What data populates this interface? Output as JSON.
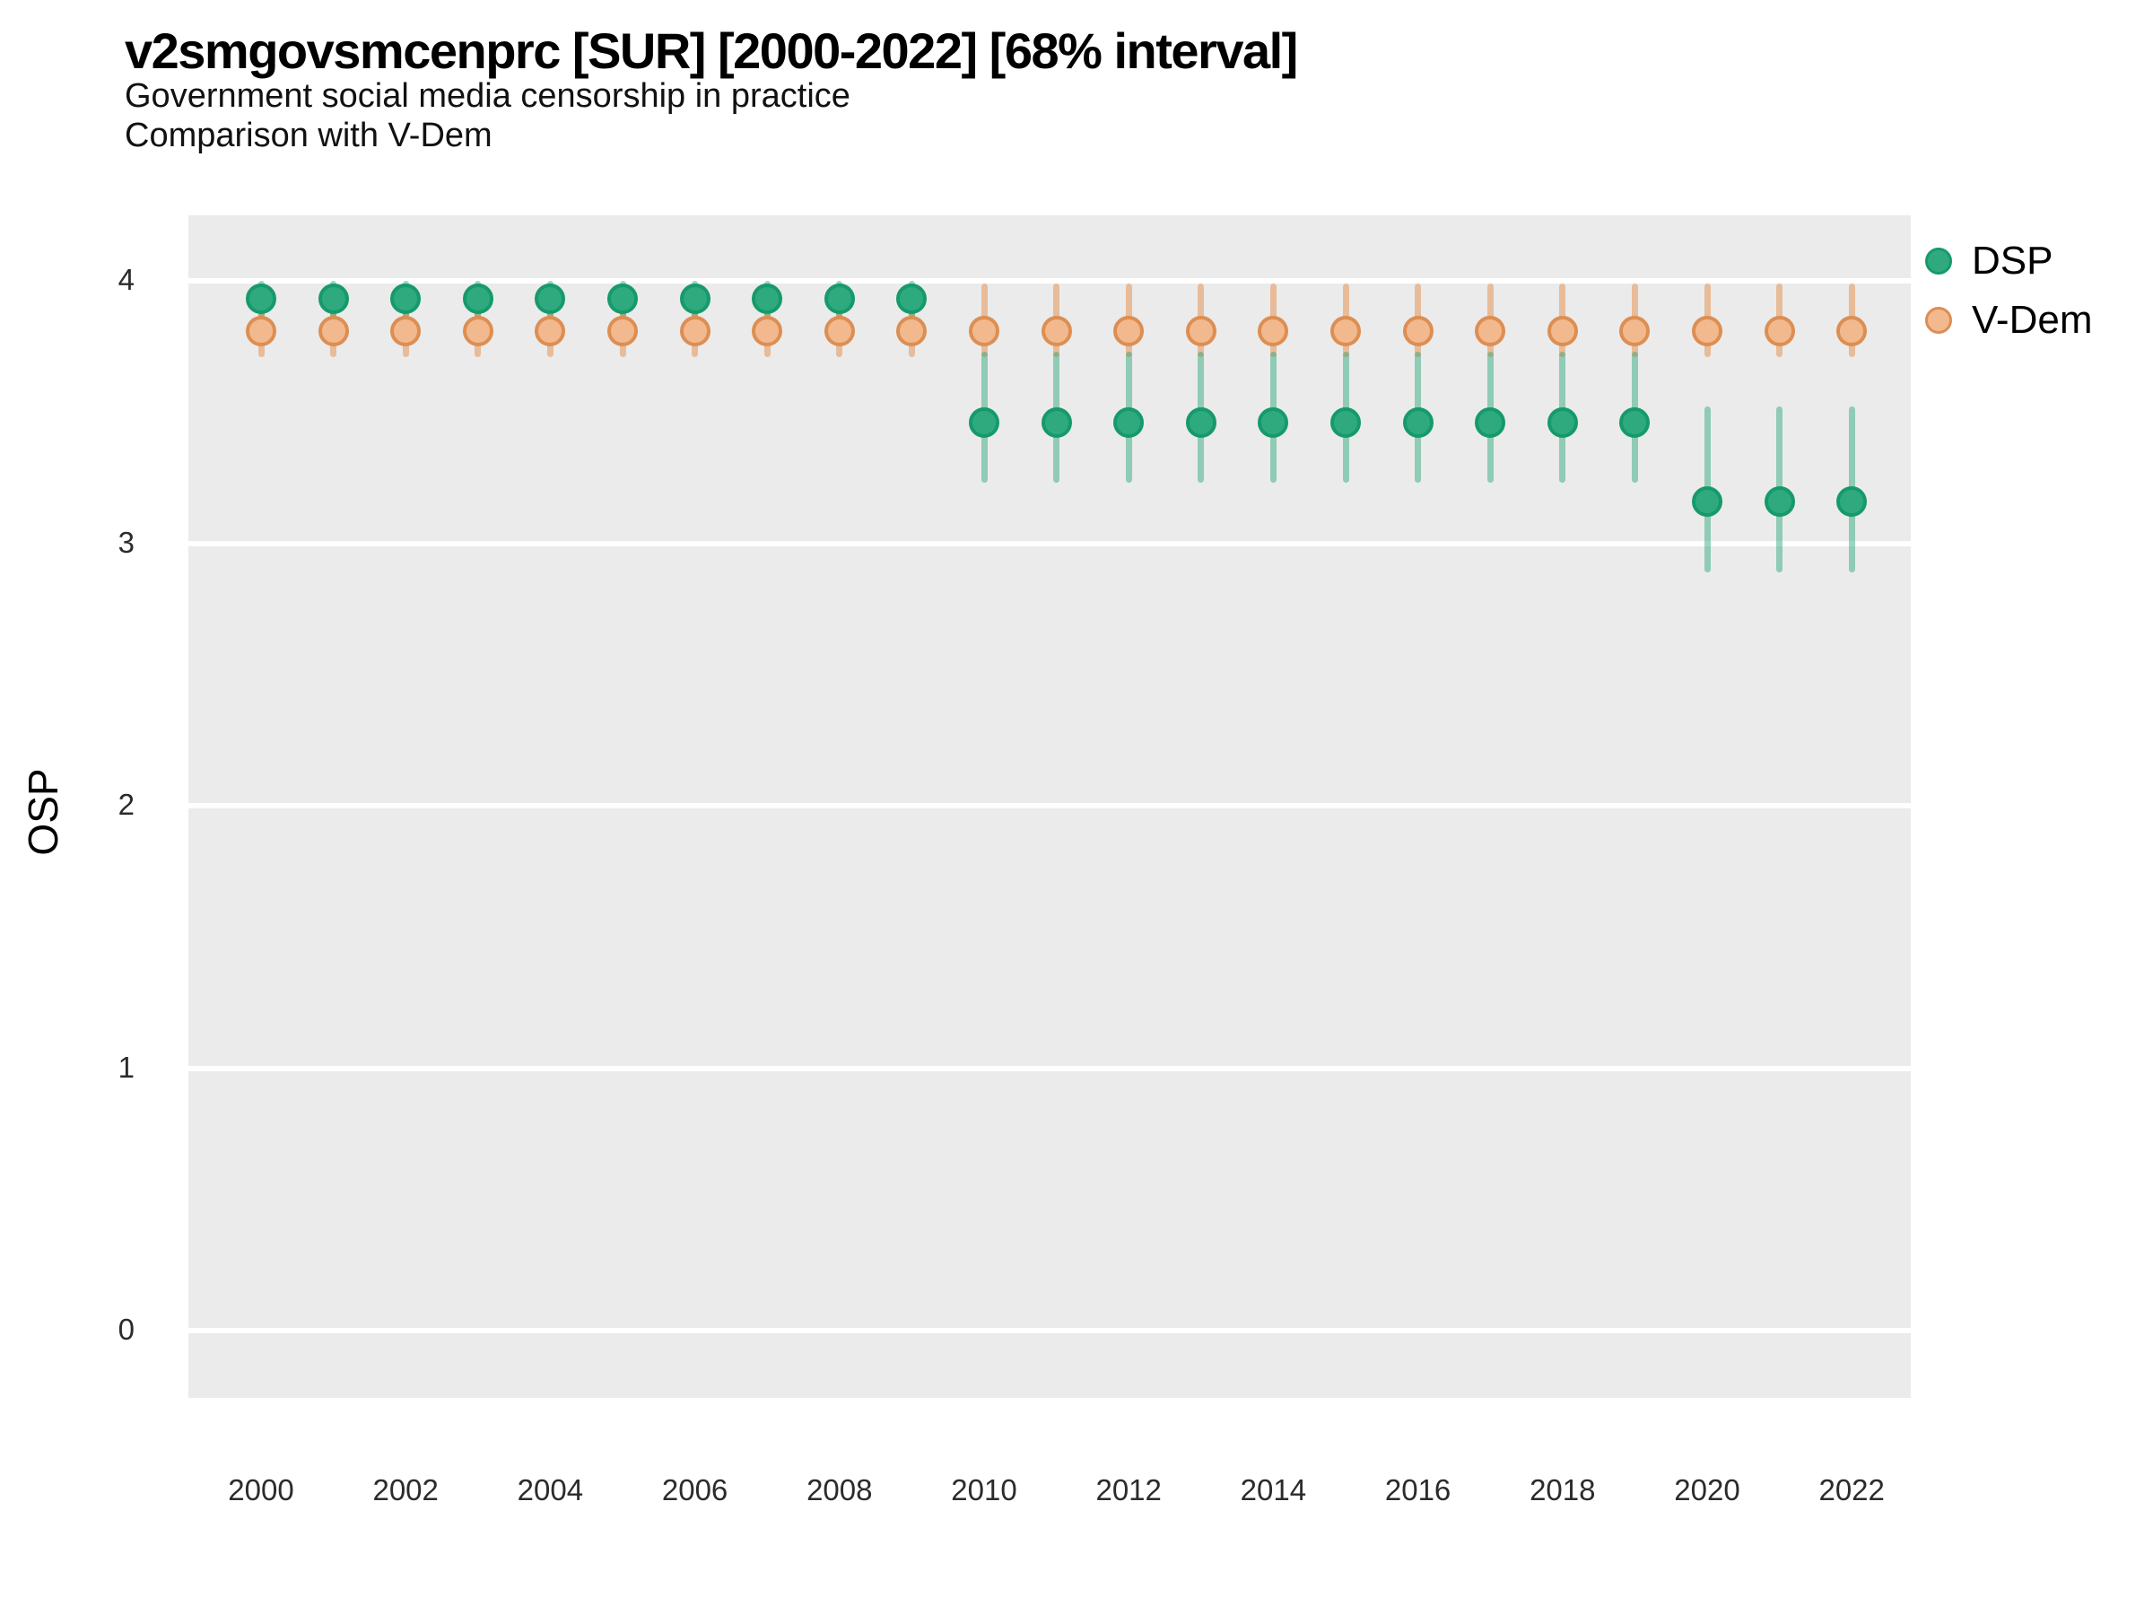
{
  "header": {
    "title": "v2smgovsmcenprc [SUR] [2000-2022] [68% interval]",
    "subtitle1": "Government social media censorship in practice",
    "subtitle2": "Comparison with V-Dem"
  },
  "colors": {
    "panel_background": "#ebebeb",
    "gridline": "#ffffff",
    "dsp_point": "#2faa7e",
    "dsp_point_border": "#169a6b",
    "dsp_interval_band": "rgba(31,163,115,0.45)",
    "vdem_point": "#f2b98e",
    "vdem_point_border": "#dd8e52",
    "vdem_interval_band": "rgba(227,134,63,0.48)"
  },
  "chart_data": {
    "type": "scatter",
    "subtype": "pointrange (point estimate with 68% credible interval bars)",
    "title": "v2smgovsmcenprc [SUR] [2000-2022] [68% interval]",
    "subtitle": "Government social media censorship in practice",
    "subtitle2": "Comparison with V-Dem",
    "xlabel": "",
    "ylabel": "OSP",
    "ylim": [
      -0.25,
      4.25
    ],
    "yticks": [
      0,
      1,
      2,
      3,
      4
    ],
    "xticks": [
      2000,
      2002,
      2004,
      2006,
      2008,
      2010,
      2012,
      2014,
      2016,
      2018,
      2020,
      2022
    ],
    "grid": "horizontal white gridlines on gray panel",
    "legend_position": "right",
    "x": [
      2000,
      2001,
      2002,
      2003,
      2004,
      2005,
      2006,
      2007,
      2008,
      2009,
      2010,
      2011,
      2012,
      2013,
      2014,
      2015,
      2016,
      2017,
      2018,
      2019,
      2020,
      2021,
      2022
    ],
    "series": [
      {
        "name": "DSP",
        "est": [
          3.93,
          3.93,
          3.93,
          3.93,
          3.93,
          3.93,
          3.93,
          3.93,
          3.93,
          3.93,
          3.46,
          3.46,
          3.46,
          3.46,
          3.46,
          3.46,
          3.46,
          3.46,
          3.46,
          3.46,
          3.16,
          3.16,
          3.16
        ],
        "lo": [
          3.86,
          3.86,
          3.86,
          3.86,
          3.86,
          3.86,
          3.86,
          3.86,
          3.86,
          3.86,
          3.23,
          3.23,
          3.23,
          3.23,
          3.23,
          3.23,
          3.23,
          3.23,
          3.23,
          3.23,
          2.89,
          2.89,
          2.89
        ],
        "hi": [
          4.0,
          4.0,
          4.0,
          4.0,
          4.0,
          4.0,
          4.0,
          4.0,
          4.0,
          4.0,
          3.73,
          3.73,
          3.73,
          3.73,
          3.73,
          3.73,
          3.73,
          3.73,
          3.73,
          3.73,
          3.52,
          3.52,
          3.52
        ]
      },
      {
        "name": "V-Dem",
        "est": [
          3.81,
          3.81,
          3.81,
          3.81,
          3.81,
          3.81,
          3.81,
          3.81,
          3.81,
          3.81,
          3.81,
          3.81,
          3.81,
          3.81,
          3.81,
          3.81,
          3.81,
          3.81,
          3.81,
          3.81,
          3.81,
          3.81,
          3.81
        ],
        "lo": [
          3.71,
          3.71,
          3.71,
          3.71,
          3.71,
          3.71,
          3.71,
          3.71,
          3.71,
          3.71,
          3.71,
          3.71,
          3.71,
          3.71,
          3.71,
          3.71,
          3.71,
          3.71,
          3.71,
          3.71,
          3.71,
          3.71,
          3.71
        ],
        "hi": [
          3.99,
          3.99,
          3.99,
          3.99,
          3.99,
          3.99,
          3.99,
          3.99,
          3.99,
          3.99,
          3.99,
          3.99,
          3.99,
          3.99,
          3.99,
          3.99,
          3.99,
          3.99,
          3.99,
          3.99,
          3.99,
          3.99,
          3.99
        ]
      }
    ]
  }
}
